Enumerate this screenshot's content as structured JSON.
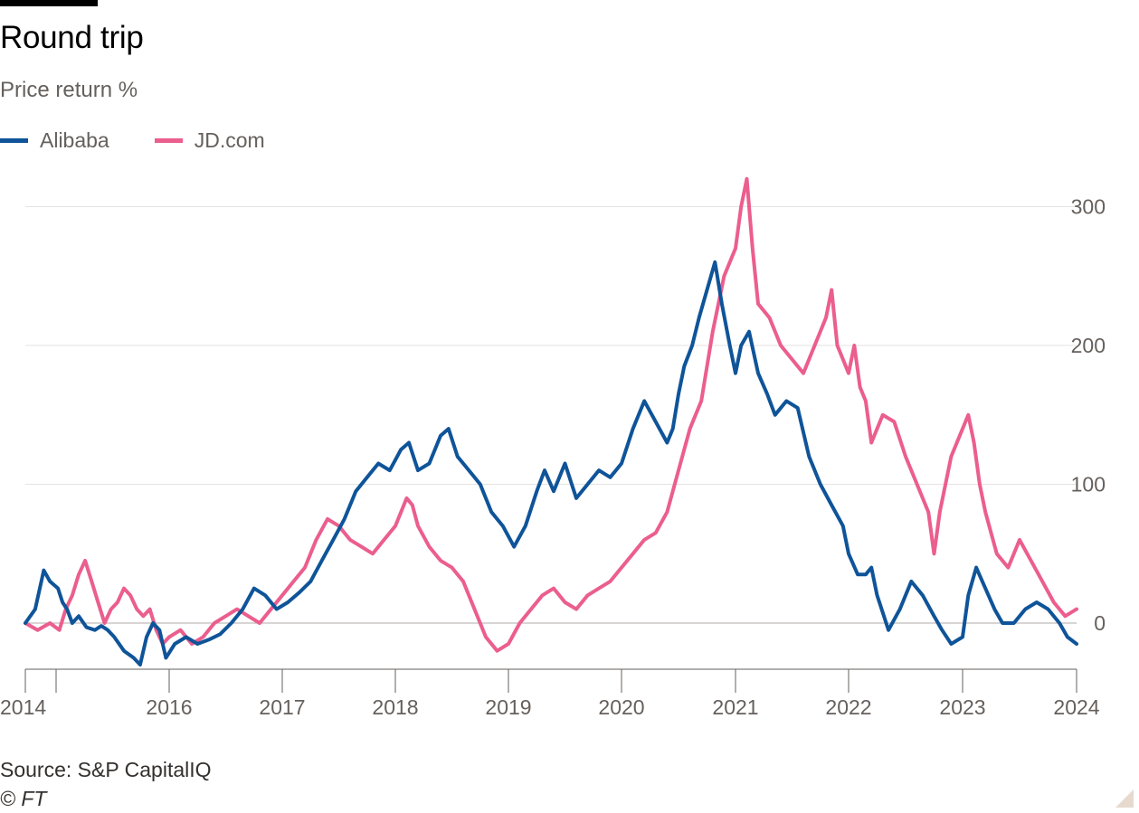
{
  "header": {
    "title": "Round trip",
    "subtitle": "Price return %"
  },
  "legend": [
    {
      "label": "Alibaba",
      "color": "#0f5499"
    },
    {
      "label": "JD.com",
      "color": "#eb5e8d"
    }
  ],
  "footer": {
    "source": "Source: S&P CapitalIQ",
    "copyright": "© FT"
  },
  "chart_data": {
    "type": "line",
    "title": "Round trip",
    "ylabel": "Price return %",
    "xlabel": "",
    "xlim": [
      2014,
      2024
    ],
    "ylim": [
      -35,
      330
    ],
    "yticks": [
      0,
      100,
      200,
      300
    ],
    "xtick_labels": [
      "2014",
      "2016",
      "2017",
      "2018",
      "2019",
      "2020",
      "2021",
      "2022",
      "2023",
      "2024"
    ],
    "grid": true,
    "series": [
      {
        "name": "Alibaba",
        "color": "#0f5499",
        "x": [
          2014.0,
          2014.08,
          2014.15,
          2014.2,
          2014.28,
          2014.35,
          2014.42,
          2014.5,
          2014.6,
          2014.72,
          2014.85,
          2014.95,
          2015.05,
          2015.15,
          2015.3,
          2015.45,
          2015.55,
          2015.65,
          2015.75,
          2015.85,
          2015.95,
          2016.05,
          2016.15,
          2016.25,
          2016.35,
          2016.45,
          2016.55,
          2016.65,
          2016.75,
          2016.85,
          2016.95,
          2017.05,
          2017.15,
          2017.25,
          2017.35,
          2017.45,
          2017.55,
          2017.65,
          2017.75,
          2017.85,
          2017.95,
          2018.05,
          2018.12,
          2018.2,
          2018.3,
          2018.4,
          2018.47,
          2018.55,
          2018.65,
          2018.75,
          2018.85,
          2018.95,
          2019.05,
          2019.15,
          2019.25,
          2019.32,
          2019.4,
          2019.5,
          2019.6,
          2019.7,
          2019.8,
          2019.9,
          2020.0,
          2020.1,
          2020.2,
          2020.3,
          2020.4,
          2020.45,
          2020.5,
          2020.55,
          2020.62,
          2020.68,
          2020.75,
          2020.82,
          2020.88,
          2020.95,
          2021.0,
          2021.05,
          2021.12,
          2021.2,
          2021.28,
          2021.35,
          2021.45,
          2021.55,
          2021.65,
          2021.75,
          2021.85,
          2021.95,
          2022.0,
          2022.08,
          2022.15,
          2022.2,
          2022.25,
          2022.35,
          2022.45,
          2022.55,
          2022.65,
          2022.75,
          2022.82,
          2022.9,
          2023.0,
          2023.05,
          2023.12,
          2023.2,
          2023.28,
          2023.35,
          2023.45,
          2023.55,
          2023.65,
          2023.75,
          2023.85,
          2023.92,
          2024.0
        ],
        "values": [
          0,
          10,
          38,
          30,
          25,
          15,
          10,
          0,
          5,
          -3,
          -5,
          -2,
          -5,
          -10,
          -20,
          -25,
          -30,
          -10,
          0,
          -5,
          -25,
          -15,
          -10,
          -15,
          -12,
          -8,
          0,
          10,
          25,
          20,
          10,
          15,
          22,
          30,
          45,
          60,
          75,
          95,
          105,
          115,
          110,
          125,
          130,
          110,
          115,
          135,
          140,
          120,
          110,
          100,
          80,
          70,
          55,
          70,
          95,
          110,
          95,
          115,
          90,
          100,
          110,
          105,
          115,
          140,
          160,
          145,
          130,
          140,
          165,
          185,
          200,
          220,
          240,
          260,
          230,
          200,
          180,
          200,
          210,
          180,
          165,
          150,
          160,
          155,
          120,
          100,
          85,
          70,
          50,
          35,
          35,
          40,
          20,
          -5,
          10,
          30,
          20,
          5,
          -5,
          -15,
          -10,
          20,
          40,
          25,
          10,
          0,
          0,
          10,
          15,
          10,
          0,
          -10,
          -15
        ]
      },
      {
        "name": "JD.com",
        "color": "#eb5e8d",
        "x": [
          2014.0,
          2014.1,
          2014.2,
          2014.3,
          2014.4,
          2014.5,
          2014.6,
          2014.7,
          2014.8,
          2014.9,
          2015.0,
          2015.1,
          2015.2,
          2015.3,
          2015.4,
          2015.5,
          2015.6,
          2015.7,
          2015.8,
          2015.9,
          2016.0,
          2016.1,
          2016.2,
          2016.3,
          2016.4,
          2016.5,
          2016.6,
          2016.7,
          2016.8,
          2016.9,
          2017.0,
          2017.1,
          2017.2,
          2017.3,
          2017.4,
          2017.5,
          2017.6,
          2017.7,
          2017.8,
          2017.9,
          2018.0,
          2018.1,
          2018.15,
          2018.2,
          2018.3,
          2018.4,
          2018.5,
          2018.6,
          2018.7,
          2018.8,
          2018.9,
          2019.0,
          2019.1,
          2019.2,
          2019.3,
          2019.4,
          2019.5,
          2019.6,
          2019.7,
          2019.8,
          2019.9,
          2020.0,
          2020.1,
          2020.2,
          2020.3,
          2020.4,
          2020.5,
          2020.6,
          2020.7,
          2020.8,
          2020.9,
          2021.0,
          2021.05,
          2021.1,
          2021.15,
          2021.2,
          2021.3,
          2021.4,
          2021.5,
          2021.6,
          2021.7,
          2021.8,
          2021.85,
          2021.9,
          2021.95,
          2022.0,
          2022.05,
          2022.1,
          2022.15,
          2022.2,
          2022.25,
          2022.3,
          2022.4,
          2022.5,
          2022.6,
          2022.7,
          2022.75,
          2022.8,
          2022.85,
          2022.9,
          2023.0,
          2023.05,
          2023.1,
          2023.15,
          2023.2,
          2023.3,
          2023.4,
          2023.5,
          2023.6,
          2023.7,
          2023.8,
          2023.9,
          2024.0
        ],
        "values": [
          0,
          -5,
          0,
          -5,
          10,
          20,
          35,
          45,
          30,
          15,
          0,
          10,
          15,
          25,
          20,
          10,
          5,
          10,
          -5,
          -15,
          -10,
          -5,
          -15,
          -10,
          0,
          5,
          10,
          5,
          0,
          10,
          20,
          30,
          40,
          60,
          75,
          70,
          60,
          55,
          50,
          60,
          70,
          90,
          85,
          70,
          55,
          45,
          40,
          30,
          10,
          -10,
          -20,
          -15,
          0,
          10,
          20,
          25,
          15,
          10,
          20,
          25,
          30,
          40,
          50,
          60,
          65,
          80,
          110,
          140,
          160,
          210,
          250,
          270,
          300,
          320,
          270,
          230,
          220,
          200,
          190,
          180,
          200,
          220,
          240,
          200,
          190,
          180,
          200,
          170,
          160,
          130,
          140,
          150,
          145,
          120,
          100,
          80,
          50,
          80,
          100,
          120,
          140,
          150,
          130,
          100,
          80,
          50,
          40,
          60,
          45,
          30,
          15,
          5,
          10
        ]
      }
    ]
  }
}
